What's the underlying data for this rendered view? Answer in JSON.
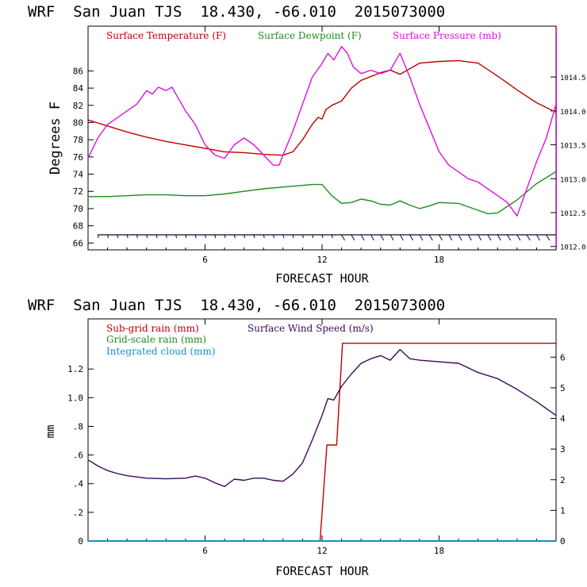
{
  "panels": [
    {
      "title": "WRF  San Juan TJS  18.430, -66.010  2015073000",
      "xlabel": "FORECAST HOUR",
      "ylabel": "Degrees F"
    },
    {
      "title": "WRF  San Juan TJS  18.430, -66.010  2015073000",
      "xlabel": "FORECAST HOUR",
      "ylabel": "mm"
    }
  ],
  "chart_data": [
    {
      "type": "line",
      "title": "WRF  San Juan TJS  18.430, -66.010  2015073000",
      "xlabel": "FORECAST HOUR",
      "ylabel": "Degrees F",
      "xlim": [
        0,
        24
      ],
      "ylim": [
        65.2,
        91.2
      ],
      "ylim_right": [
        1011.95,
        1015.25
      ],
      "x_ticks": [
        6,
        12,
        18
      ],
      "x_tick_labels": [
        "6",
        "12",
        "18"
      ],
      "y_ticks": [
        66,
        68,
        70,
        72,
        74,
        76,
        78,
        80,
        82,
        84,
        86
      ],
      "y_tick_labels": [
        "66",
        "68",
        "70",
        "72",
        "74",
        "76",
        "78",
        "80",
        "82",
        "84",
        "86"
      ],
      "y_right_ticks": [
        1012.0,
        1012.5,
        1013.0,
        1013.5,
        1014.0,
        1014.5
      ],
      "y_right_tick_labels": [
        "1012.0",
        "1012.5",
        "1013.0",
        "1013.5",
        "1014.0",
        "1014.5"
      ],
      "legend_position": "top",
      "grid": false,
      "series": [
        {
          "name": "Surface Temperature (F)",
          "color": "#c00000",
          "axis": "left",
          "x": [
            0,
            1,
            2,
            3,
            4,
            5,
            6,
            7,
            8,
            9,
            10,
            10.5,
            11,
            11.5,
            11.8,
            12,
            12.2,
            12.5,
            12.8,
            13,
            13.5,
            14,
            15,
            15.5,
            16,
            17,
            18,
            19,
            20,
            21,
            22,
            23,
            24
          ],
          "y": [
            80.3,
            79.6,
            78.9,
            78.3,
            77.8,
            77.4,
            77.0,
            76.6,
            76.5,
            76.3,
            76.2,
            76.6,
            78.0,
            79.8,
            80.6,
            80.4,
            81.5,
            82.0,
            82.3,
            82.5,
            84.0,
            84.9,
            85.8,
            86.1,
            85.6,
            86.9,
            87.1,
            87.2,
            86.9,
            85.4,
            83.8,
            82.3,
            81.2
          ]
        },
        {
          "name": "Surface Dewpoint (F)",
          "color": "#1e8c1e",
          "axis": "left",
          "x": [
            0,
            1,
            2,
            3,
            4,
            5,
            6,
            7,
            8,
            9,
            10,
            11,
            11.5,
            12,
            12.5,
            13,
            13.5,
            14,
            14.5,
            15,
            15.5,
            16,
            16.5,
            17,
            17.5,
            18,
            19,
            20,
            20.5,
            21,
            22,
            23,
            24
          ],
          "y": [
            71.4,
            71.4,
            71.5,
            71.6,
            71.6,
            71.5,
            71.5,
            71.7,
            72.0,
            72.3,
            72.5,
            72.7,
            72.8,
            72.8,
            71.5,
            70.6,
            70.7,
            71.1,
            70.9,
            70.5,
            70.4,
            70.9,
            70.4,
            70.0,
            70.3,
            70.7,
            70.6,
            69.8,
            69.4,
            69.5,
            71.0,
            72.9,
            74.3
          ]
        },
        {
          "name": "Surface Pressure (mb)",
          "color": "#e010e0",
          "axis": "right",
          "x": [
            0,
            0.5,
            1,
            1.5,
            2,
            2.5,
            3,
            3.3,
            3.6,
            4,
            4.3,
            4.6,
            5,
            5.5,
            6,
            6.5,
            7,
            7.5,
            8,
            8.5,
            9,
            9.5,
            9.8,
            10,
            10.5,
            11,
            11.5,
            12,
            12.3,
            12.6,
            13,
            13.3,
            13.6,
            14,
            14.5,
            15,
            15.5,
            16,
            16.5,
            17,
            17.5,
            18,
            18.5,
            19,
            19.5,
            20,
            20.5,
            21,
            21.5,
            22,
            22.5,
            23,
            23.5,
            24
          ],
          "y": [
            1013.3,
            1013.6,
            1013.8,
            1013.9,
            1014.0,
            1014.1,
            1014.3,
            1014.25,
            1014.35,
            1014.3,
            1014.35,
            1014.2,
            1014.0,
            1013.8,
            1013.5,
            1013.35,
            1013.3,
            1013.5,
            1013.6,
            1013.5,
            1013.35,
            1013.2,
            1013.2,
            1013.35,
            1013.7,
            1014.1,
            1014.5,
            1014.7,
            1014.85,
            1014.75,
            1014.95,
            1014.85,
            1014.65,
            1014.55,
            1014.6,
            1014.55,
            1014.6,
            1014.85,
            1014.5,
            1014.1,
            1013.75,
            1013.4,
            1013.2,
            1013.1,
            1013.0,
            1012.95,
            1012.85,
            1012.75,
            1012.65,
            1012.45,
            1012.85,
            1013.25,
            1013.6,
            1014.1
          ]
        }
      ],
      "wind_barbs": "row of wind barbs along the bottom of the panel, hourly"
    },
    {
      "type": "line",
      "title": "WRF  San Juan TJS  18.430, -66.010  2015073000",
      "xlabel": "FORECAST HOUR",
      "ylabel": "mm",
      "xlim": [
        0,
        24
      ],
      "ylim": [
        0,
        1.55
      ],
      "ylim_right": [
        0,
        7.25
      ],
      "x_ticks": [
        6,
        12,
        18
      ],
      "x_tick_labels": [
        "6",
        "12",
        "18"
      ],
      "y_ticks": [
        0,
        0.2,
        0.4,
        0.6,
        0.8,
        1.0,
        1.2
      ],
      "y_tick_labels": [
        "0",
        ".2",
        ".4",
        ".6",
        ".8",
        "1.0",
        "1.2"
      ],
      "y_right_ticks": [
        0,
        1,
        2,
        3,
        4,
        5,
        6
      ],
      "y_right_tick_labels": [
        "0",
        "1",
        "2",
        "3",
        "4",
        "5",
        "6"
      ],
      "legend_position": "top",
      "grid": false,
      "series": [
        {
          "name": "Sub-grid rain (mm)",
          "color": "#c00000",
          "axis": "left",
          "x": [
            0,
            11.9,
            12.25,
            12.3,
            12.7,
            12.75,
            13.05,
            24
          ],
          "y": [
            0,
            0,
            0.67,
            0.67,
            0.67,
            0.67,
            1.38,
            1.38
          ]
        },
        {
          "name": "Grid-scale rain (mm)",
          "color": "#1e8c1e",
          "axis": "left",
          "x": [
            0,
            24
          ],
          "y": [
            0,
            0
          ]
        },
        {
          "name": "Integrated cloud (mm)",
          "color": "#1090d0",
          "axis": "left",
          "x": [
            0,
            24
          ],
          "y": [
            0,
            0
          ]
        },
        {
          "name": "Surface Wind Speed (m/s)",
          "color": "#3a0a5a",
          "axis": "right",
          "x": [
            0,
            0.5,
            1,
            1.5,
            2,
            3,
            4,
            5,
            5.5,
            6,
            6.5,
            7,
            7.5,
            8,
            8.5,
            9,
            9.5,
            10,
            10.5,
            11,
            11.5,
            12,
            12.3,
            12.6,
            13,
            13.5,
            14,
            14.5,
            15,
            15.5,
            16,
            16.5,
            17,
            18,
            19,
            20,
            21,
            22,
            23,
            24
          ],
          "y": [
            2.65,
            2.45,
            2.3,
            2.2,
            2.13,
            2.05,
            2.03,
            2.05,
            2.12,
            2.05,
            1.9,
            1.78,
            2.02,
            1.98,
            2.05,
            2.05,
            1.98,
            1.95,
            2.18,
            2.55,
            3.3,
            4.1,
            4.65,
            4.6,
            5.05,
            5.45,
            5.8,
            5.95,
            6.05,
            5.9,
            6.25,
            5.95,
            5.9,
            5.85,
            5.8,
            5.5,
            5.3,
            4.95,
            4.55,
            4.1
          ]
        }
      ]
    }
  ]
}
